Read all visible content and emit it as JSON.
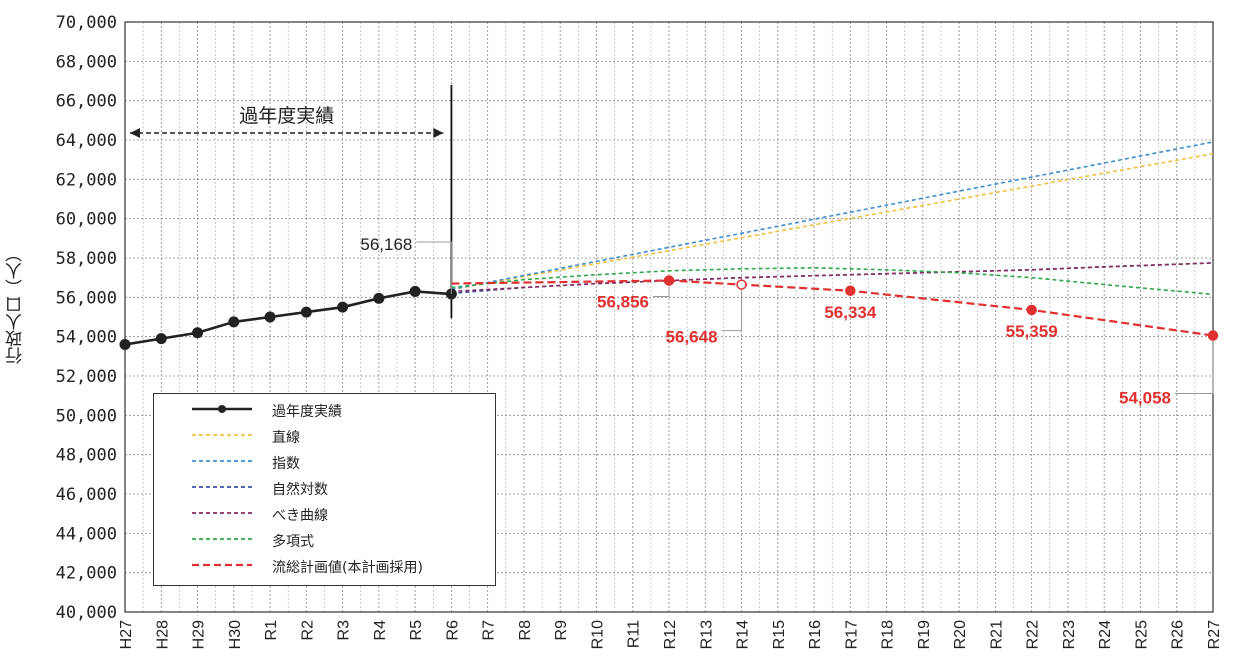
{
  "chart_data": {
    "type": "line",
    "ylabel": "行政人口（人）",
    "ylim": [
      40000,
      70000
    ],
    "ytick_step": 2000,
    "ytick_labels": [
      "40,000",
      "42,000",
      "44,000",
      "46,000",
      "48,000",
      "50,000",
      "52,000",
      "54,000",
      "56,000",
      "58,000",
      "60,000",
      "62,000",
      "64,000",
      "66,000",
      "68,000",
      "70,000"
    ],
    "categories": [
      "H27",
      "H28",
      "H29",
      "H30",
      "R1",
      "R2",
      "R3",
      "R4",
      "R5",
      "R6",
      "R7",
      "R8",
      "R9",
      "R10",
      "R11",
      "R12",
      "R13",
      "R14",
      "R15",
      "R16",
      "R17",
      "R18",
      "R19",
      "R20",
      "R21",
      "R22",
      "R23",
      "R24",
      "R25",
      "R26",
      "R27"
    ],
    "grid": true,
    "annotation_range": {
      "label": "過年度実績",
      "from": "H27",
      "to": "R6"
    },
    "series": [
      {
        "name": "過年度実績",
        "color": "#222222",
        "style": "solid-marker",
        "x": [
          "H27",
          "H28",
          "H29",
          "H30",
          "R1",
          "R2",
          "R3",
          "R4",
          "R5",
          "R6"
        ],
        "values": [
          53600,
          53900,
          54200,
          54750,
          55000,
          55250,
          55500,
          55950,
          56300,
          56168
        ]
      },
      {
        "name": "直線",
        "color": "#f0c040",
        "style": "dashed",
        "x": [
          "R6",
          "R27"
        ],
        "values": [
          56400,
          63300
        ]
      },
      {
        "name": "指数",
        "color": "#3d8fd0",
        "style": "dashed",
        "x": [
          "R6",
          "R27"
        ],
        "values": [
          56400,
          63900
        ]
      },
      {
        "name": "自然対数",
        "color": "#3a4fa8",
        "style": "dashed",
        "x": [
          "R6",
          "R8",
          "R10",
          "R12",
          "R14",
          "R16",
          "R18",
          "R20",
          "R22",
          "R24",
          "R27"
        ],
        "values": [
          56200,
          56500,
          56700,
          56850,
          57000,
          57100,
          57200,
          57300,
          57400,
          57550,
          57750
        ]
      },
      {
        "name": "べき曲線",
        "color": "#8b2a5e",
        "style": "dashed",
        "x": [
          "R6",
          "R8",
          "R10",
          "R12",
          "R14",
          "R16",
          "R18",
          "R20",
          "R22",
          "R24",
          "R27"
        ],
        "values": [
          56300,
          56500,
          56700,
          56850,
          57000,
          57100,
          57200,
          57300,
          57400,
          57550,
          57750
        ]
      },
      {
        "name": "多項式",
        "color": "#2ea84a",
        "style": "dashed",
        "x": [
          "R6",
          "R8",
          "R10",
          "R12",
          "R14",
          "R16",
          "R18",
          "R20",
          "R22",
          "R24",
          "R27"
        ],
        "values": [
          56500,
          56900,
          57150,
          57350,
          57450,
          57500,
          57400,
          57250,
          57000,
          56650,
          56150
        ]
      },
      {
        "name": "流総計画値(本計画採用)",
        "color": "#e03030",
        "style": "dashed-bold",
        "x": [
          "R6",
          "R12",
          "R14",
          "R17",
          "R22",
          "R27"
        ],
        "values": [
          56700,
          56856,
          56648,
          56334,
          55359,
          54058
        ]
      }
    ],
    "data_labels": [
      {
        "text": "56,168",
        "color": "#222222",
        "x": "R6",
        "value": 56168
      },
      {
        "text": "56,856",
        "color": "#e03030",
        "x": "R12",
        "value": 56856
      },
      {
        "text": "56,648",
        "color": "#e03030",
        "x": "R14",
        "value": 56648
      },
      {
        "text": "56,334",
        "color": "#e03030",
        "x": "R17",
        "value": 56334
      },
      {
        "text": "55,359",
        "color": "#e03030",
        "x": "R22",
        "value": 55359
      },
      {
        "text": "54,058",
        "color": "#e03030",
        "x": "R27",
        "value": 54058
      }
    ],
    "legend": {
      "placement": "bottom-left",
      "entries": [
        "過年度実績",
        "直線",
        "指数",
        "自然対数",
        "べき曲線",
        "多項式",
        "流総計画値(本計画採用)"
      ]
    }
  }
}
